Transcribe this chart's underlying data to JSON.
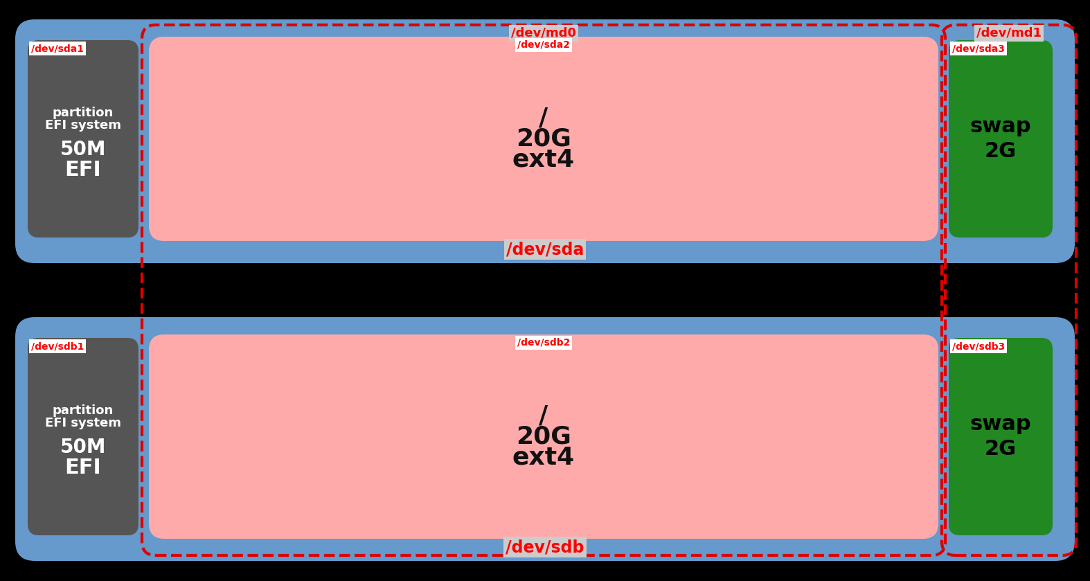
{
  "bg_color": "#000000",
  "blue_color": "#6699cc",
  "gray_color": "#555555",
  "pink_color": "#ffaaaa",
  "green_color": "#228822",
  "red_dashed_color": "#dd0000",
  "white_color": "#ffffff",
  "label_bg_white": "#ffffff",
  "label_bg_gray": "#cccccc",
  "disk1_label": "/dev/sda",
  "disk2_label": "/dev/sdb",
  "md0_label": "/dev/md0",
  "md1_label": "/dev/md1",
  "sda1_label": "/dev/sda1",
  "sda2_label": "/dev/sda2",
  "sda3_label": "/dev/sda3",
  "sdb1_label": "/dev/sdb1",
  "sdb2_label": "/dev/sdb2",
  "sdb3_label": "/dev/sdb3",
  "efi_lines": [
    "EFI",
    "50M",
    "EFI system",
    "partition"
  ],
  "root_lines": [
    "/",
    "20G",
    "ext4"
  ],
  "swap_lines": [
    "swap",
    "2G"
  ],
  "fig_w": 15.74,
  "fig_h": 8.39,
  "dpi": 100
}
